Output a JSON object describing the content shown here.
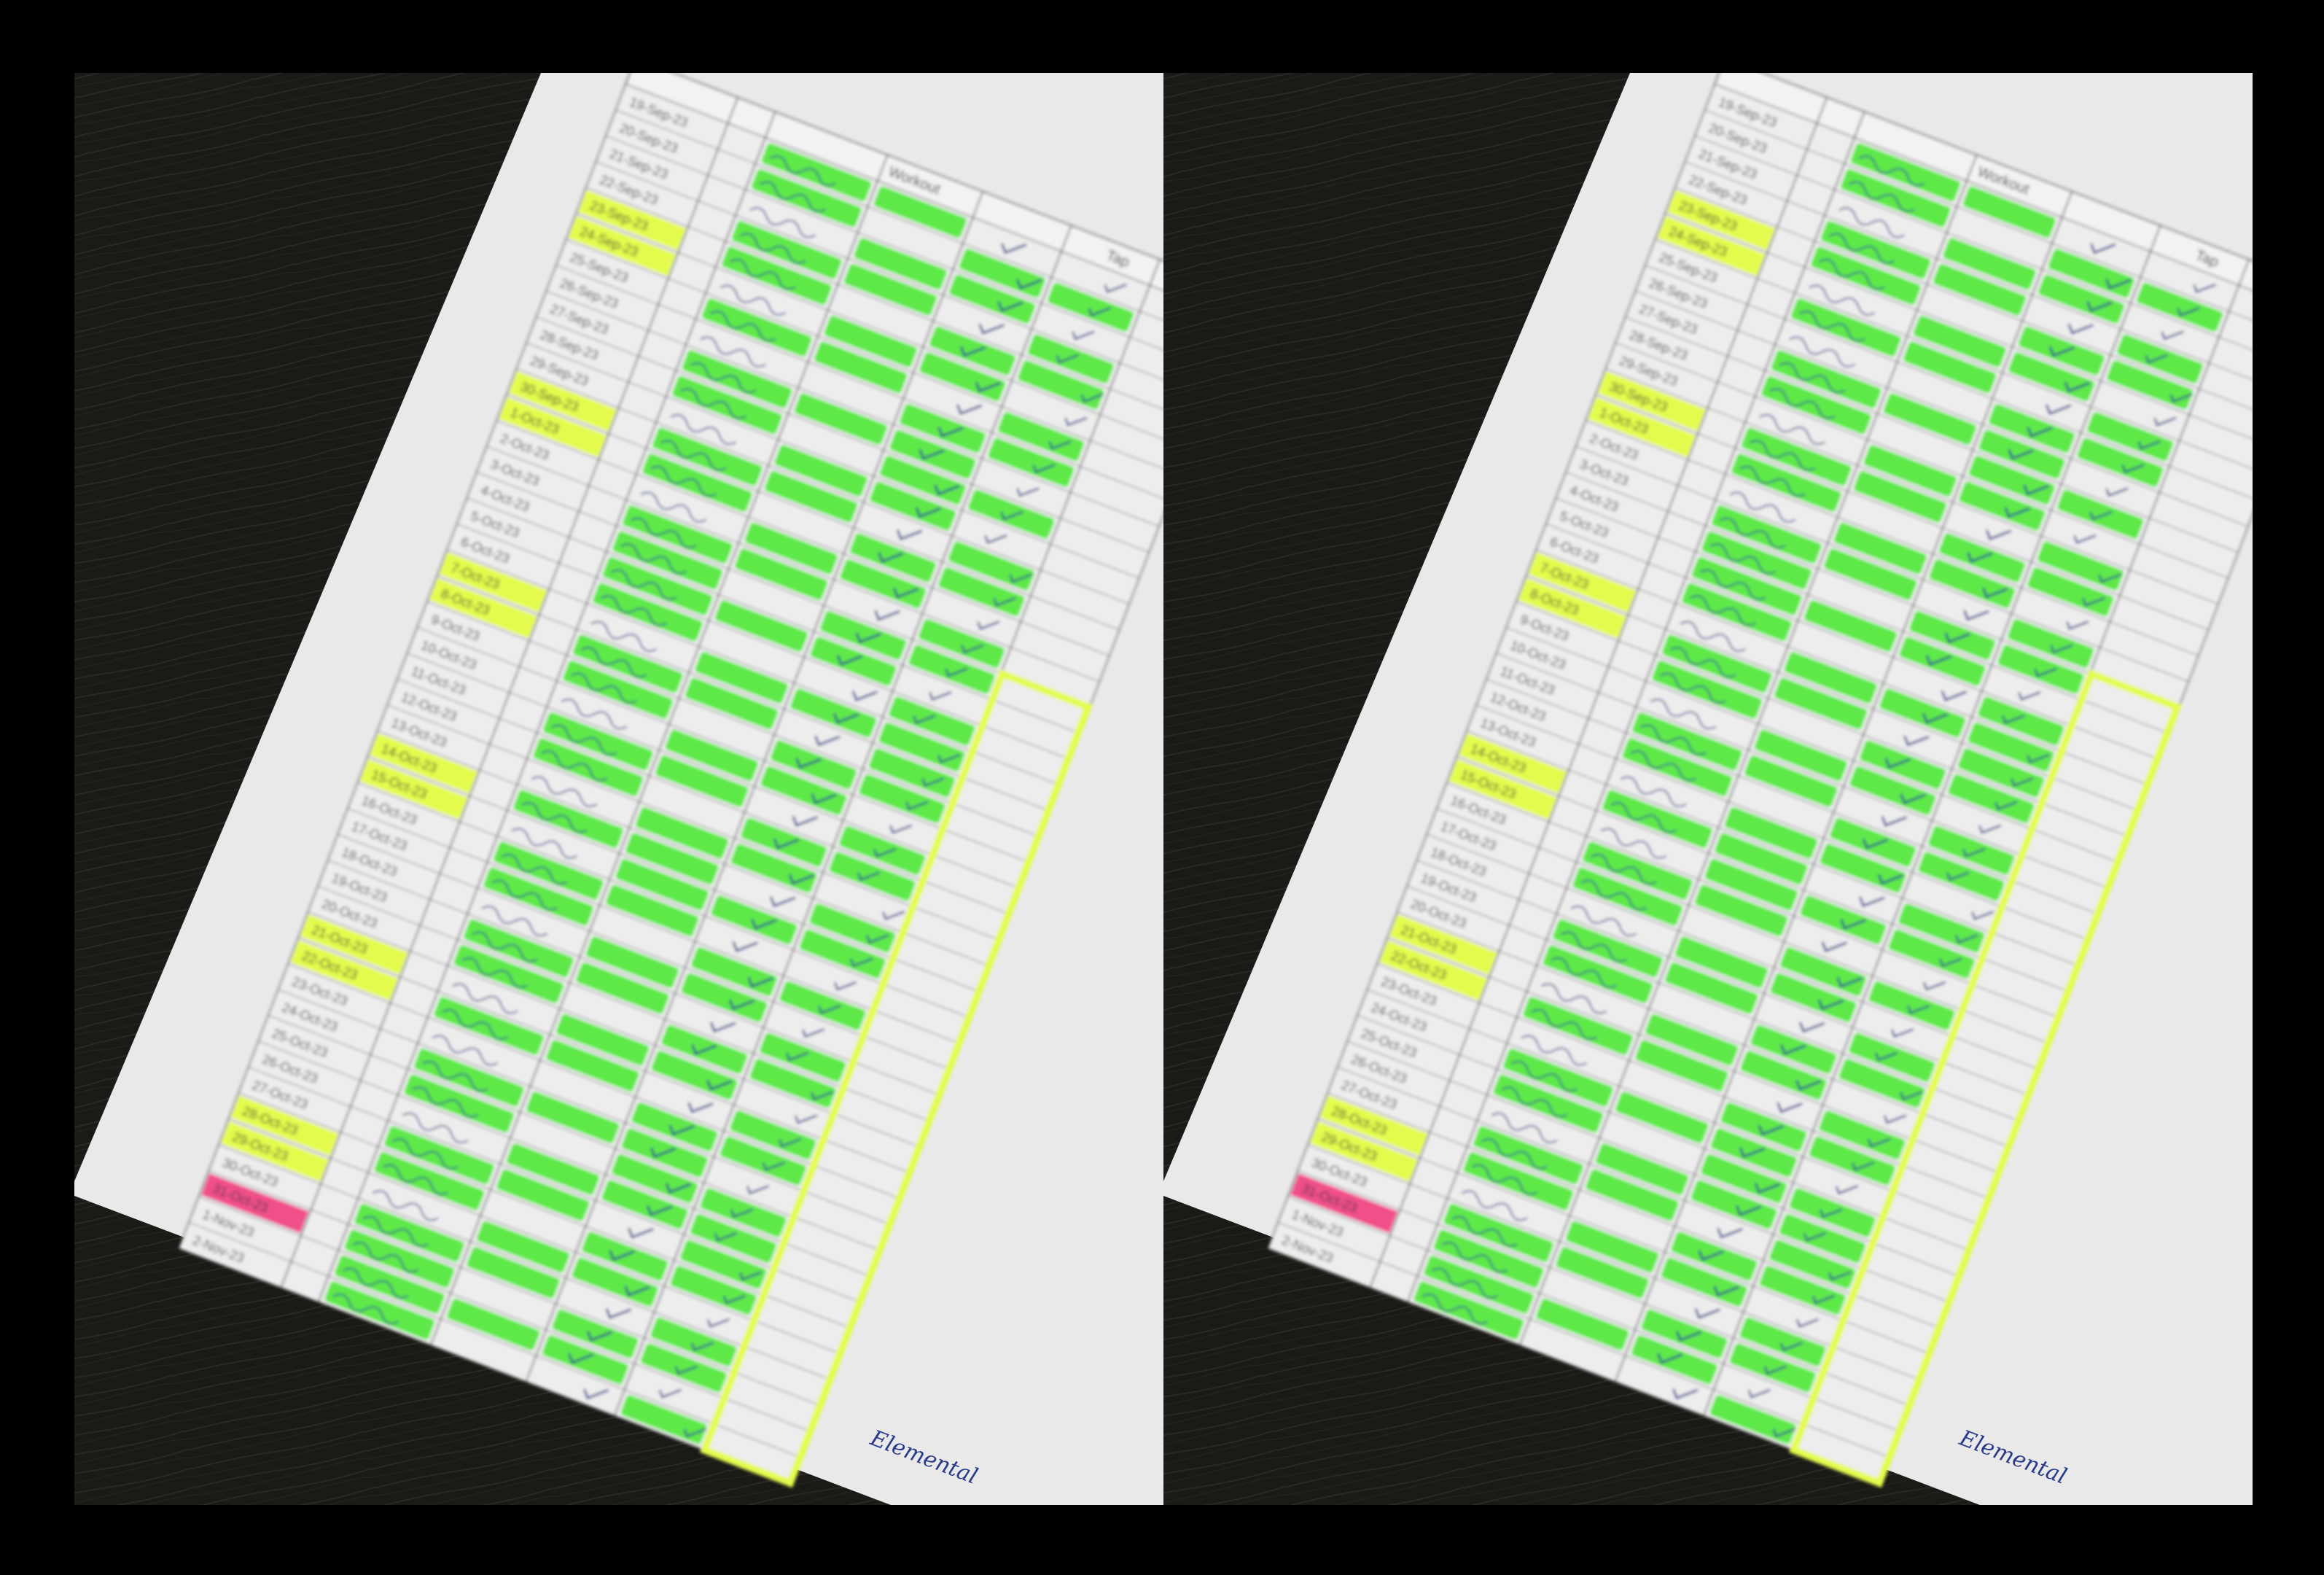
{
  "image": {
    "layout": "side-by-side duplicate photographs",
    "subject": "tilted printed log sheet with highlighted rows on a dark wood desk",
    "panels": [
      "left",
      "right"
    ]
  },
  "header": {
    "columns_visible": [
      "Workout",
      "Tap"
    ]
  },
  "sheet": {
    "dates": [
      "19-Sep-23",
      "20-Sep-23",
      "21-Sep-23",
      "22-Sep-23",
      "23-Sep-23",
      "24-Sep-23",
      "25-Sep-23",
      "26-Sep-23",
      "27-Sep-23",
      "28-Sep-23",
      "29-Sep-23",
      "30-Sep-23",
      "1-Oct-23",
      "2-Oct-23",
      "3-Oct-23",
      "4-Oct-23",
      "5-Oct-23",
      "6-Oct-23",
      "7-Oct-23",
      "8-Oct-23",
      "9-Oct-23",
      "10-Oct-23",
      "11-Oct-23",
      "12-Oct-23",
      "13-Oct-23",
      "14-Oct-23",
      "15-Oct-23",
      "16-Oct-23",
      "17-Oct-23",
      "18-Oct-23",
      "19-Oct-23",
      "20-Oct-23",
      "21-Oct-23",
      "22-Oct-23",
      "23-Oct-23",
      "24-Oct-23",
      "25-Oct-23",
      "26-Oct-23",
      "27-Oct-23",
      "28-Oct-23",
      "29-Oct-23",
      "30-Oct-23",
      "31-Oct-23",
      "1-Nov-23",
      "2-Nov-23"
    ],
    "row_states": [
      "white",
      "white",
      "white",
      "white",
      "yellow",
      "yellow",
      "white",
      "white",
      "white",
      "white",
      "white",
      "yellow",
      "yellow",
      "white",
      "white",
      "white",
      "white",
      "white",
      "yellow",
      "yellow",
      "white",
      "white",
      "white",
      "white",
      "white",
      "yellow",
      "yellow",
      "white",
      "white",
      "white",
      "white",
      "white",
      "yellow",
      "yellow",
      "white",
      "white",
      "white",
      "white",
      "white",
      "yellow",
      "yellow",
      "white",
      "pink",
      "white",
      "white"
    ],
    "margin_note": "Elemental"
  },
  "colors": {
    "desk": "#1b1a17",
    "paper": "#e9e9ea",
    "green_highlight": "#52e83c",
    "yellow_highlight": "#e4fb4d",
    "pink_highlight": "#f0508a",
    "ink": "#2a3a8a",
    "border": "#000000"
  }
}
